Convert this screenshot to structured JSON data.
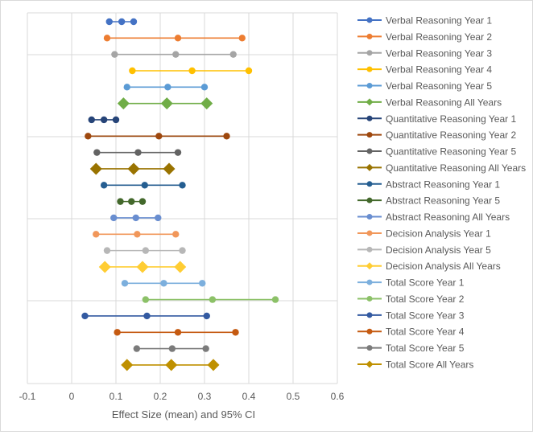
{
  "chart_data": {
    "type": "scatter",
    "subtype": "forest-plot",
    "title": "",
    "xlabel": "Effect Size (mean) and 95% CI",
    "ylabel": "",
    "xlim": [
      -0.1,
      0.6
    ],
    "x_ticks": [
      "-0.1",
      "0",
      "0.1",
      "0.2",
      "0.3",
      "0.4",
      "0.5",
      "0.6"
    ],
    "grid": "vertical and horizontal gridlines",
    "legend_position": "right",
    "series": [
      {
        "name": "Verbal Reasoning Year 1",
        "lower": 0.085,
        "mean": 0.113,
        "upper": 0.14,
        "color": "#4472C4",
        "marker": "circle"
      },
      {
        "name": "Verbal Reasoning Year 2",
        "lower": 0.08,
        "mean": 0.24,
        "upper": 0.385,
        "color": "#ED7D31",
        "marker": "circle"
      },
      {
        "name": "Verbal Reasoning Year 3",
        "lower": 0.097,
        "mean": 0.235,
        "upper": 0.365,
        "color": "#A5A5A5",
        "marker": "circle"
      },
      {
        "name": "Verbal Reasoning Year 4",
        "lower": 0.137,
        "mean": 0.272,
        "upper": 0.4,
        "color": "#FFC000",
        "marker": "circle"
      },
      {
        "name": "Verbal Reasoning Year 5",
        "lower": 0.125,
        "mean": 0.217,
        "upper": 0.3,
        "color": "#5B9BD5",
        "marker": "circle"
      },
      {
        "name": "Verbal Reasoning All Years",
        "lower": 0.117,
        "mean": 0.215,
        "upper": 0.305,
        "color": "#70AD47",
        "marker": "diamond"
      },
      {
        "name": "Quantitative Reasoning Year 1",
        "lower": 0.045,
        "mean": 0.073,
        "upper": 0.1,
        "color": "#264478",
        "marker": "circle"
      },
      {
        "name": "Quantitative Reasoning Year 2",
        "lower": 0.037,
        "mean": 0.197,
        "upper": 0.35,
        "color": "#9E480E",
        "marker": "circle"
      },
      {
        "name": "Quantitative Reasoning Year 5",
        "lower": 0.057,
        "mean": 0.15,
        "upper": 0.24,
        "color": "#636363",
        "marker": "circle"
      },
      {
        "name": "Quantitative Reasoning All Years",
        "lower": 0.055,
        "mean": 0.14,
        "upper": 0.22,
        "color": "#997300",
        "marker": "diamond"
      },
      {
        "name": "Abstract Reasoning Year 1",
        "lower": 0.073,
        "mean": 0.165,
        "upper": 0.25,
        "color": "#255E91",
        "marker": "circle"
      },
      {
        "name": "Abstract Reasoning Year 5",
        "lower": 0.11,
        "mean": 0.135,
        "upper": 0.16,
        "color": "#43682B",
        "marker": "circle"
      },
      {
        "name": "Abstract Reasoning All Years",
        "lower": 0.095,
        "mean": 0.145,
        "upper": 0.195,
        "color": "#698ED0",
        "marker": "circle"
      },
      {
        "name": "Decision Analysis Year 1",
        "lower": 0.055,
        "mean": 0.148,
        "upper": 0.235,
        "color": "#F1975A",
        "marker": "circle"
      },
      {
        "name": "Decision Analysis Year 5",
        "lower": 0.08,
        "mean": 0.167,
        "upper": 0.25,
        "color": "#B7B7B7",
        "marker": "circle"
      },
      {
        "name": "Decision Analysis All Years",
        "lower": 0.075,
        "mean": 0.16,
        "upper": 0.245,
        "color": "#FFCD33",
        "marker": "diamond"
      },
      {
        "name": "Total Score Year 1",
        "lower": 0.12,
        "mean": 0.208,
        "upper": 0.295,
        "color": "#7CAFDD",
        "marker": "circle"
      },
      {
        "name": "Total Score Year 2",
        "lower": 0.167,
        "mean": 0.318,
        "upper": 0.46,
        "color": "#8CC168",
        "marker": "circle"
      },
      {
        "name": "Total Score Year 3",
        "lower": 0.03,
        "mean": 0.17,
        "upper": 0.305,
        "color": "#335AA1",
        "marker": "circle"
      },
      {
        "name": "Total Score Year 4",
        "lower": 0.103,
        "mean": 0.24,
        "upper": 0.37,
        "color": "#C55A11",
        "marker": "circle"
      },
      {
        "name": "Total Score Year 5",
        "lower": 0.147,
        "mean": 0.227,
        "upper": 0.303,
        "color": "#7B7B7B",
        "marker": "circle"
      },
      {
        "name": "Total Score All Years",
        "lower": 0.125,
        "mean": 0.225,
        "upper": 0.32,
        "color": "#BF9000",
        "marker": "diamond"
      }
    ]
  }
}
